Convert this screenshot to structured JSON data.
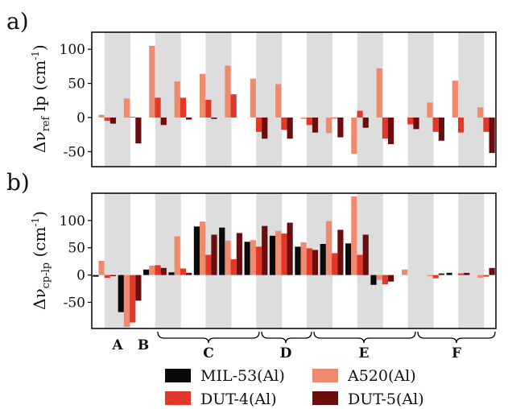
{
  "colors": {
    "MIL-53(Al)": "#0a0a0a",
    "A520(Al)": "#f08a6e",
    "DUT-4(Al)": "#e2382a",
    "DUT-5(Al)": "#6b0d0d",
    "band": "#dddddd"
  },
  "legend": [
    {
      "name": "MIL-53(Al)",
      "label": "MIL-53(Al)"
    },
    {
      "name": "A520(Al)",
      "label": "A520(Al)"
    },
    {
      "name": "DUT-4(Al)",
      "label": "DUT-4(Al)"
    },
    {
      "name": "DUT-5(Al)",
      "label": "DUT-5(Al)"
    }
  ],
  "groups": [
    {
      "label": "A"
    },
    {
      "label": "B"
    },
    {
      "label": "C"
    },
    {
      "label": "D"
    },
    {
      "label": "E"
    },
    {
      "label": "F"
    }
  ],
  "chart_data": [
    {
      "type": "bar",
      "panel_label": "a)",
      "ylabel_main": "Δν",
      "ylabel_sub": "ref",
      "ylabel_tail": " lp (cm",
      "ylabel_sup": "-1",
      "ylabel_close": ")",
      "ylim": [
        -72,
        125
      ],
      "yticks": [
        -50,
        0,
        50,
        100
      ],
      "tick_labels": [
        "-50",
        "0",
        "50",
        "100"
      ],
      "categories": 16,
      "series": [
        {
          "name": "MIL-53(Al)",
          "values": [
            0,
            0,
            0,
            0,
            0,
            0,
            0,
            0,
            0,
            0,
            0,
            0,
            0,
            0,
            0,
            0
          ]
        },
        {
          "name": "A520(Al)",
          "values": [
            4,
            28,
            105,
            53,
            64,
            76,
            57,
            49,
            -2,
            -23,
            -53,
            72,
            0,
            22,
            54,
            15
          ]
        },
        {
          "name": "DUT-4(Al)",
          "values": [
            -5,
            1,
            29,
            29,
            26,
            34,
            -21,
            -18,
            -11,
            -1,
            10,
            -31,
            -10,
            -21,
            -22,
            -21
          ]
        },
        {
          "name": "DUT-5(Al)",
          "values": [
            -9,
            -38,
            -11,
            -3,
            -2,
            0,
            -31,
            -31,
            -22,
            -29,
            -15,
            -39,
            -17,
            -34,
            0,
            -52
          ]
        }
      ]
    },
    {
      "type": "bar",
      "panel_label": "b)",
      "ylabel_main": "Δν",
      "ylabel_sub": "cp-lp",
      "ylabel_tail": " (cm",
      "ylabel_sup": "-1",
      "ylabel_close": ")",
      "ylim": [
        -98,
        150
      ],
      "yticks": [
        -50,
        0,
        50,
        100
      ],
      "tick_labels": [
        "-50",
        "0",
        "50",
        "100"
      ],
      "categories": 16,
      "series": [
        {
          "name": "MIL-53(Al)",
          "values": [
            -3,
            -68,
            10,
            5,
            89,
            87,
            61,
            72,
            52,
            57,
            58,
            -18,
            0,
            0,
            4,
            0
          ]
        },
        {
          "name": "A520(Al)",
          "values": [
            26,
            -95,
            17,
            71,
            98,
            63,
            64,
            81,
            60,
            99,
            144,
            -9,
            10,
            -2,
            0,
            -5
          ]
        },
        {
          "name": "DUT-4(Al)",
          "values": [
            -5,
            -87,
            18,
            12,
            37,
            29,
            52,
            76,
            49,
            40,
            37,
            -17,
            0,
            -6,
            3,
            -3
          ]
        },
        {
          "name": "DUT-5(Al)",
          "values": [
            -2,
            -47,
            13,
            4,
            74,
            77,
            90,
            96,
            46,
            83,
            74,
            -12,
            0,
            3,
            4,
            13
          ]
        }
      ]
    }
  ]
}
